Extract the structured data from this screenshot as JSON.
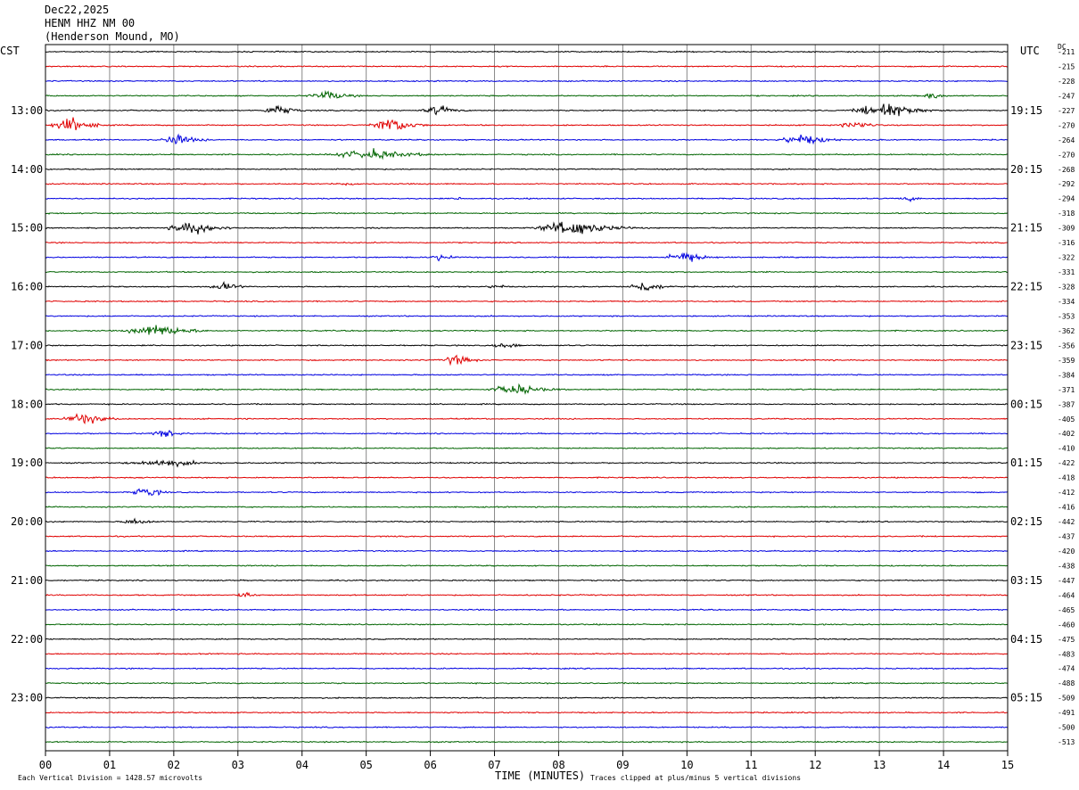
{
  "header": {
    "date": "Dec22,2025",
    "station": "HENM HHZ NM 00",
    "location": "(Henderson Mound, MO)"
  },
  "left_tz": "CST",
  "right_tz": "UTC",
  "dc_label": "DC",
  "footer": {
    "xlabel": "TIME (MINUTES)",
    "scale_note": "Each Vertical Division = 1428.57 microvolts",
    "clip_note": "Traces clipped at plus/minus 5 vertical divisions"
  },
  "chart_data": {
    "type": "line",
    "xlabel": "TIME (MINUTES)",
    "x_ticks": [
      "00",
      "01",
      "02",
      "03",
      "04",
      "05",
      "06",
      "07",
      "08",
      "09",
      "10",
      "11",
      "12",
      "13",
      "14",
      "15"
    ],
    "xlim": [
      0,
      15
    ],
    "trace_count": 48,
    "trace_colors": [
      "#000000",
      "#e00000",
      "#0000e0",
      "#006400"
    ],
    "left_hour_labels": [
      "13:00",
      "14:00",
      "15:00",
      "16:00",
      "17:00",
      "18:00",
      "19:00",
      "20:00",
      "21:00",
      "22:00",
      "23:00"
    ],
    "right_hour_labels": [
      "19:15",
      "20:15",
      "21:15",
      "22:15",
      "23:15",
      "00:15",
      "01:15",
      "02:15",
      "03:15",
      "04:15",
      "05:15"
    ],
    "hour_label_first_trace": 4,
    "dc_offsets": [
      -211,
      -215,
      -228,
      -247,
      -227,
      -270,
      -264,
      -270,
      -268,
      -292,
      -294,
      -318,
      -309,
      -316,
      -322,
      -331,
      -328,
      -334,
      -353,
      -362,
      -356,
      -359,
      -384,
      -371,
      -387,
      -405,
      -402,
      -410,
      -422,
      -418,
      -412,
      -416,
      -442,
      -437,
      -420,
      -438,
      -447,
      -464,
      -465,
      -460,
      -475,
      -483,
      -474,
      -488,
      -509,
      -491,
      -500,
      -513
    ],
    "events": [
      {
        "trace": 3,
        "start": 4.0,
        "end": 5.2,
        "amp": 8
      },
      {
        "trace": 3,
        "start": 13.6,
        "end": 14.3,
        "amp": 6
      },
      {
        "trace": 4,
        "start": 3.3,
        "end": 4.3,
        "amp": 9
      },
      {
        "trace": 4,
        "start": 5.8,
        "end": 6.8,
        "amp": 8
      },
      {
        "trace": 4,
        "start": 12.5,
        "end": 14.2,
        "amp": 14
      },
      {
        "trace": 5,
        "start": 0.0,
        "end": 1.2,
        "amp": 12
      },
      {
        "trace": 5,
        "start": 5.0,
        "end": 6.2,
        "amp": 14
      },
      {
        "trace": 5,
        "start": 12.3,
        "end": 13.3,
        "amp": 7
      },
      {
        "trace": 6,
        "start": 1.7,
        "end": 2.8,
        "amp": 9
      },
      {
        "trace": 6,
        "start": 11.3,
        "end": 12.8,
        "amp": 9
      },
      {
        "trace": 7,
        "start": 4.2,
        "end": 6.8,
        "amp": 8
      },
      {
        "trace": 9,
        "start": 4.5,
        "end": 5.3,
        "amp": 3
      },
      {
        "trace": 10,
        "start": 6.3,
        "end": 6.7,
        "amp": 3
      },
      {
        "trace": 10,
        "start": 13.2,
        "end": 14.0,
        "amp": 4
      },
      {
        "trace": 12,
        "start": 1.8,
        "end": 3.3,
        "amp": 11
      },
      {
        "trace": 12,
        "start": 7.5,
        "end": 9.6,
        "amp": 13
      },
      {
        "trace": 14,
        "start": 5.9,
        "end": 6.7,
        "amp": 6
      },
      {
        "trace": 14,
        "start": 9.6,
        "end": 10.7,
        "amp": 11
      },
      {
        "trace": 16,
        "start": 2.5,
        "end": 3.4,
        "amp": 7
      },
      {
        "trace": 16,
        "start": 6.8,
        "end": 7.5,
        "amp": 4
      },
      {
        "trace": 16,
        "start": 9.0,
        "end": 10.0,
        "amp": 10
      },
      {
        "trace": 19,
        "start": 1.1,
        "end": 3.0,
        "amp": 10
      },
      {
        "trace": 20,
        "start": 6.8,
        "end": 8.0,
        "amp": 4
      },
      {
        "trace": 21,
        "start": 6.1,
        "end": 7.0,
        "amp": 9
      },
      {
        "trace": 21,
        "start": 12.0,
        "end": 12.6,
        "amp": 2
      },
      {
        "trace": 23,
        "start": 6.8,
        "end": 8.4,
        "amp": 9
      },
      {
        "trace": 25,
        "start": 0.2,
        "end": 1.4,
        "amp": 10
      },
      {
        "trace": 26,
        "start": 1.5,
        "end": 2.6,
        "amp": 6
      },
      {
        "trace": 28,
        "start": 1.0,
        "end": 3.5,
        "amp": 6
      },
      {
        "trace": 30,
        "start": 1.3,
        "end": 2.1,
        "amp": 10
      },
      {
        "trace": 32,
        "start": 1.1,
        "end": 2.0,
        "amp": 6
      },
      {
        "trace": 37,
        "start": 2.9,
        "end": 3.6,
        "amp": 5
      }
    ]
  }
}
